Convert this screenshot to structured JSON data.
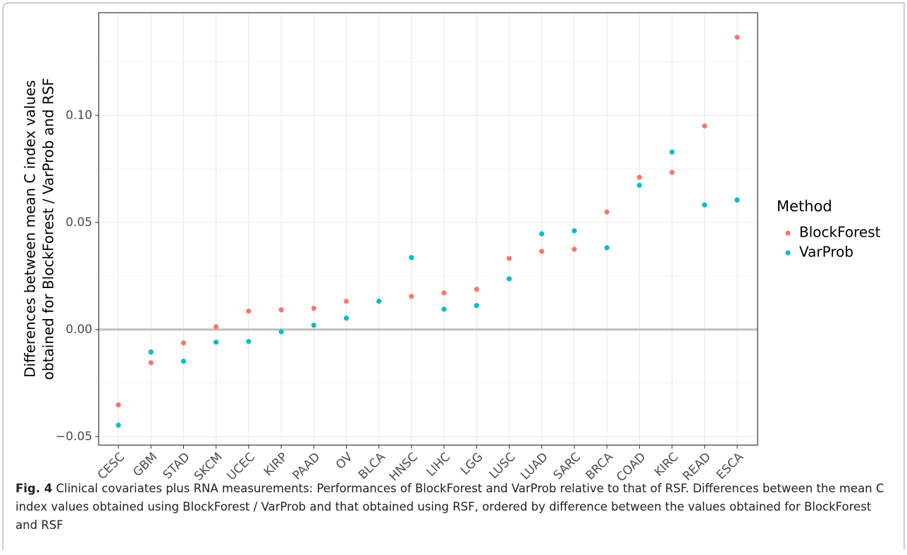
{
  "chart_data": {
    "type": "scatter",
    "ylabel": [
      "Differences between mean C index values",
      "obtained for BlockForest / VarProb and RSF"
    ],
    "categories": [
      "CESC",
      "GBM",
      "STAD",
      "SKCM",
      "UCEC",
      "KIRP",
      "PAAD",
      "OV",
      "BLCA",
      "HNSC",
      "LIHC",
      "LGG",
      "LUSC",
      "LUAD",
      "SARC",
      "BRCA",
      "COAD",
      "KIRC",
      "READ",
      "ESCA"
    ],
    "series": [
      {
        "name": "BlockForest",
        "color": "#F8766D",
        "values": [
          -0.0352,
          -0.0155,
          -0.0063,
          0.0013,
          0.0086,
          0.0092,
          0.0099,
          0.0132,
          0.0132,
          0.0155,
          0.0171,
          0.0188,
          0.0332,
          0.0365,
          0.0375,
          0.0549,
          0.0711,
          0.0734,
          0.0951,
          0.1365
        ]
      },
      {
        "name": "VarProb",
        "color": "#00BFC4",
        "values": [
          -0.0447,
          -0.0105,
          -0.0148,
          -0.0059,
          -0.0056,
          -0.001,
          0.002,
          0.0053,
          0.0132,
          0.0336,
          0.0095,
          0.0112,
          0.0237,
          0.0447,
          0.0461,
          0.0382,
          0.0674,
          0.0829,
          0.0582,
          0.0605
        ]
      }
    ],
    "ylim": [
      -0.054,
      0.148
    ],
    "yticks": [
      {
        "value": -0.05,
        "label": "−0.05"
      },
      {
        "value": 0,
        "label": "0.00"
      },
      {
        "value": 0.05,
        "label": "0.05"
      },
      {
        "value": 0.1,
        "label": "0.10"
      }
    ],
    "reference_line": 0,
    "grid": true,
    "legend_title": "Method",
    "legend_position": "right"
  },
  "caption": {
    "label": "Fig. 4",
    "text": "Clinical covariates plus RNA measurements: Performances of BlockForest and VarProb relative to that of RSF. Differences between the mean C index values obtained using BlockForest / VarProb and that obtained using RSF, ordered by difference between the values obtained for BlockForest and RSF"
  }
}
